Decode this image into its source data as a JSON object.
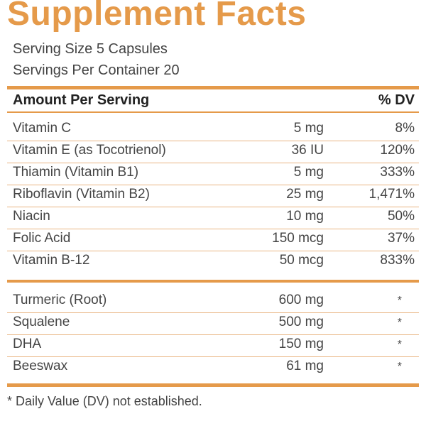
{
  "title": "Supplement Facts",
  "serving_size": "Serving Size 5 Capsules",
  "servings_per_container": "Servings Per Container 20",
  "header": {
    "amount_label": "Amount Per Serving",
    "dv_label": "% DV"
  },
  "vitamins": [
    {
      "name": "Vitamin C",
      "amount": "5 mg",
      "dv": "8%"
    },
    {
      "name": "Vitamin E (as Tocotrienol)",
      "amount": "36 IU",
      "dv": "120%"
    },
    {
      "name": "Thiamin (Vitamin B1)",
      "amount": "5 mg",
      "dv": "333%"
    },
    {
      "name": "Riboflavin (Vitamin B2)",
      "amount": "25 mg",
      "dv": "1,471%"
    },
    {
      "name": "Niacin",
      "amount": "10 mg",
      "dv": "50%"
    },
    {
      "name": "Folic Acid",
      "amount": "150 mcg",
      "dv": "37%"
    },
    {
      "name": "Vitamin B-12",
      "amount": "50 mcg",
      "dv": "833%"
    }
  ],
  "others": [
    {
      "name": "Turmeric (Root)",
      "amount": "600 mg",
      "dv": "*"
    },
    {
      "name": "Squalene",
      "amount": "500 mg",
      "dv": "*"
    },
    {
      "name": "DHA",
      "amount": "150 mg",
      "dv": "*"
    },
    {
      "name": "Beeswax",
      "amount": "61 mg",
      "dv": "*"
    }
  ],
  "footnote": "* Daily Value (DV) not established.",
  "colors": {
    "accent": "#e59a4a",
    "text": "#444444"
  }
}
